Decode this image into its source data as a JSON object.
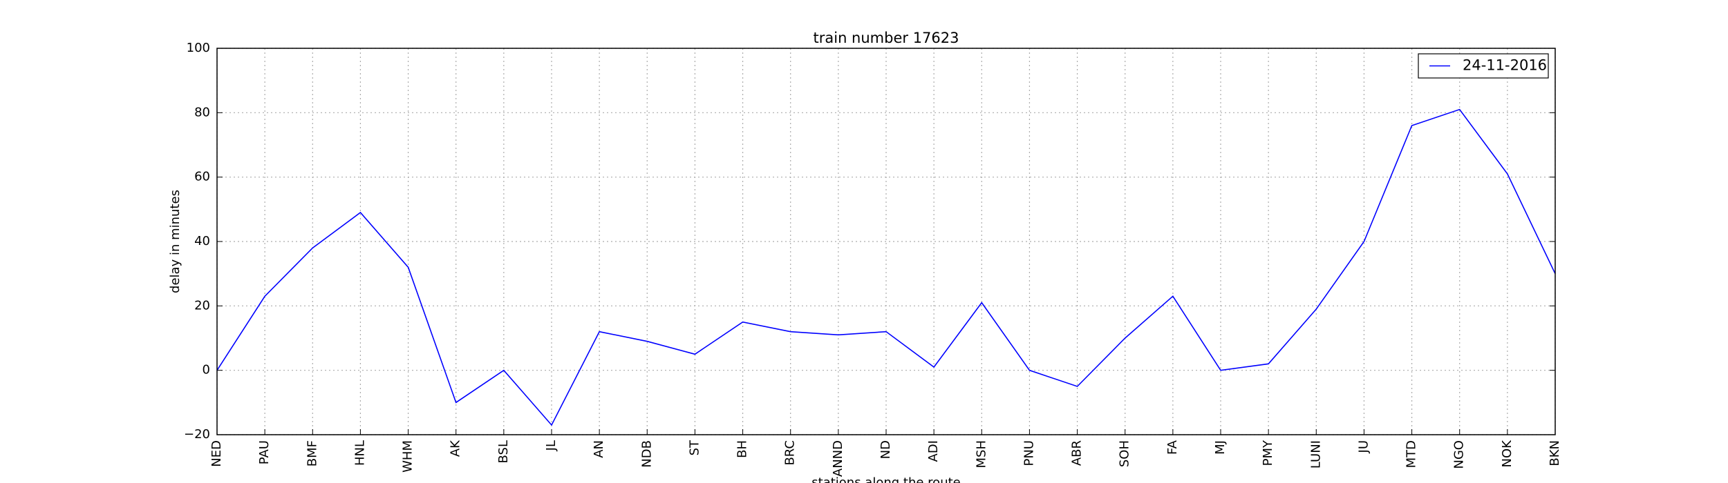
{
  "chart_data": {
    "type": "line",
    "title": "train number 17623",
    "x_label": "stations along the route",
    "y_label": "delay in minutes",
    "categories": [
      "NED",
      "PAU",
      "BMF",
      "HNL",
      "WHM",
      "AK",
      "BSL",
      "JL",
      "AN",
      "NDB",
      "ST",
      "BH",
      "BRC",
      "ANND",
      "ND",
      "ADI",
      "MSH",
      "PNU",
      "ABR",
      "SOH",
      "FA",
      "MJ",
      "PMY",
      "LUNI",
      "JU",
      "MTD",
      "NGO",
      "NOK",
      "BKN"
    ],
    "series": [
      {
        "name": "24-11-2016",
        "color": "#0000ff",
        "values": [
          0,
          23,
          38,
          49,
          32,
          -10,
          0,
          -17,
          12,
          9,
          5,
          15,
          12,
          11,
          12,
          1,
          21,
          0,
          -5,
          10,
          23,
          0,
          2,
          19,
          40,
          76,
          81,
          61,
          30
        ]
      }
    ],
    "ylim": [
      -20,
      100
    ],
    "yticks": [
      {
        "value": -20,
        "label": "−20"
      },
      0,
      20,
      40,
      60,
      80,
      100
    ],
    "grid": true,
    "legend": "upper right"
  }
}
